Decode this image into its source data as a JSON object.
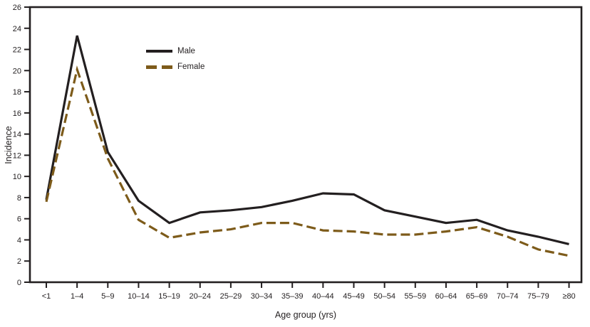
{
  "chart_data": {
    "type": "line",
    "title": "",
    "xlabel": "Age group (yrs)",
    "ylabel": "Incidence",
    "ylim": [
      0,
      26
    ],
    "ytick_step": 2,
    "grid": false,
    "legend_position": "upper-left-inside",
    "categories": [
      "<1",
      "1–4",
      "5–9",
      "10–14",
      "15–19",
      "20–24",
      "25–29",
      "30–34",
      "35–39",
      "40–44",
      "45–49",
      "50–54",
      "55–59",
      "60–64",
      "65–69",
      "70–74",
      "75–79",
      "≥80"
    ],
    "series": [
      {
        "name": "Male",
        "style": "solid",
        "color": "#231f20",
        "values": [
          7.8,
          23.3,
          12.3,
          7.7,
          5.6,
          6.6,
          6.8,
          7.1,
          7.7,
          8.4,
          8.3,
          6.8,
          6.2,
          5.6,
          5.9,
          4.9,
          4.3,
          3.6
        ]
      },
      {
        "name": "Female",
        "style": "dashed",
        "color": "#7d5b1a",
        "values": [
          7.6,
          20.1,
          11.7,
          5.9,
          4.2,
          4.7,
          5.0,
          5.6,
          5.6,
          4.9,
          4.8,
          4.5,
          4.5,
          4.8,
          5.2,
          4.3,
          3.1,
          2.5
        ]
      }
    ]
  },
  "colors": {
    "axis": "#231f20",
    "background": "#ffffff"
  }
}
